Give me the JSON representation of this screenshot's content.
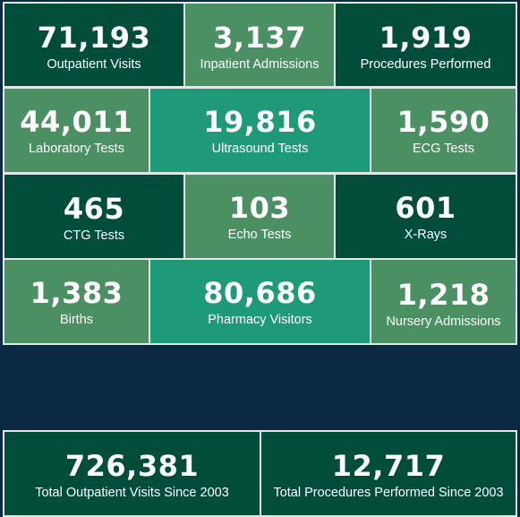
{
  "stats": [
    {
      "value": "71,193",
      "label": "Outpatient Visits"
    },
    {
      "value": "3,137",
      "label": "Inpatient Admissions"
    },
    {
      "value": "1,919",
      "label": "Procedures Performed"
    },
    {
      "value": "44,011",
      "label": "Laboratory Tests"
    },
    {
      "value": "19,816",
      "label": "Ultrasound Tests"
    },
    {
      "value": "1,590",
      "label": "ECG Tests"
    },
    {
      "value": "465",
      "label": "CTG Tests"
    },
    {
      "value": "103",
      "label": "Echo Tests"
    },
    {
      "value": "601",
      "label": "X-Rays"
    },
    {
      "value": "1,383",
      "label": "Births"
    },
    {
      "value": "80,686",
      "label": "Pharmacy Visitors"
    },
    {
      "value": "1,218",
      "label": "Nursery Admissions"
    }
  ],
  "totals": [
    {
      "value": "726,381",
      "label": "Total Outpatient Visits Since 2003"
    },
    {
      "value": "12,717",
      "label": "Total Procedures Performed Since 2003"
    }
  ],
  "colors": {
    "background": "#0b2942",
    "dark_green": "#004d3a",
    "mid_green": "#4b9063",
    "teal": "#1f9a78",
    "border": "#dfe9e5"
  }
}
